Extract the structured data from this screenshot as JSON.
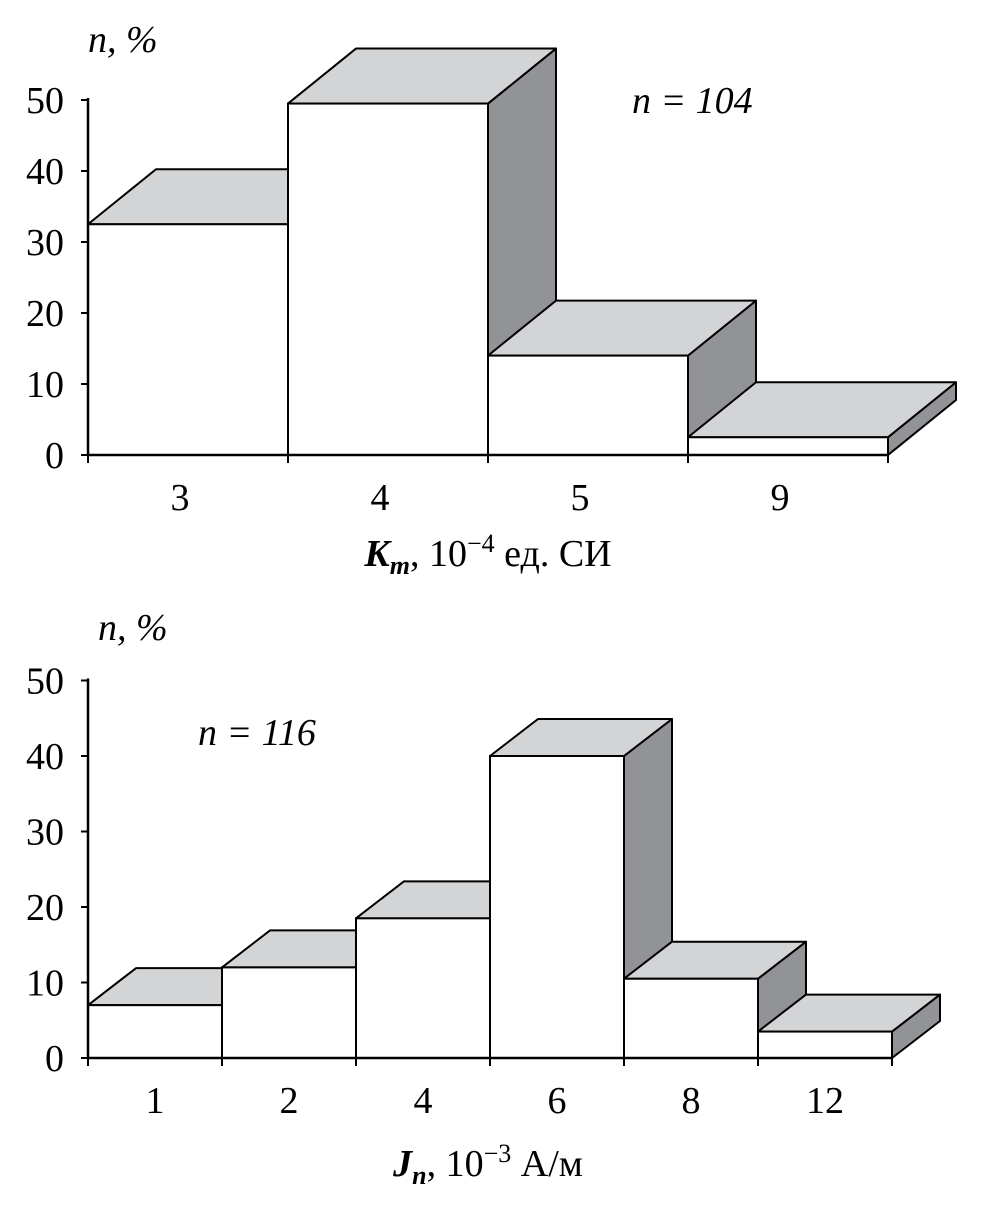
{
  "chart_data": [
    {
      "type": "bar",
      "style": "3d-histogram",
      "y_axis_label": "n, %",
      "count_label": "n = 104",
      "xlabel": {
        "symbol": "K",
        "subscript": "m",
        "rest": ", 10",
        "exponent": "−4",
        "unit": " ед. СИ"
      },
      "categories": [
        "3",
        "4",
        "5",
        "9"
      ],
      "values": [
        32.5,
        49.5,
        14,
        2.5
      ],
      "ylim": [
        0,
        50
      ],
      "yticks": [
        "0",
        "10",
        "20",
        "30",
        "40",
        "50"
      ],
      "colors": {
        "front": "#ffffff",
        "top": "#d3d4d6",
        "side": "#929396"
      }
    },
    {
      "type": "bar",
      "style": "3d-histogram",
      "y_axis_label": "n, %",
      "count_label": "n = 116",
      "xlabel": {
        "symbol": "J",
        "subscript": "n",
        "rest": ", 10",
        "exponent": "−3",
        "unit": " А/м"
      },
      "categories": [
        "1",
        "2",
        "4",
        "6",
        "8",
        "12"
      ],
      "values": [
        7,
        12,
        18.5,
        40,
        10.5,
        3.5
      ],
      "ylim": [
        0,
        50
      ],
      "yticks": [
        "0",
        "10",
        "20",
        "30",
        "40",
        "50"
      ],
      "colors": {
        "front": "#ffffff",
        "top": "#d3d4d6",
        "side": "#929396"
      }
    }
  ]
}
